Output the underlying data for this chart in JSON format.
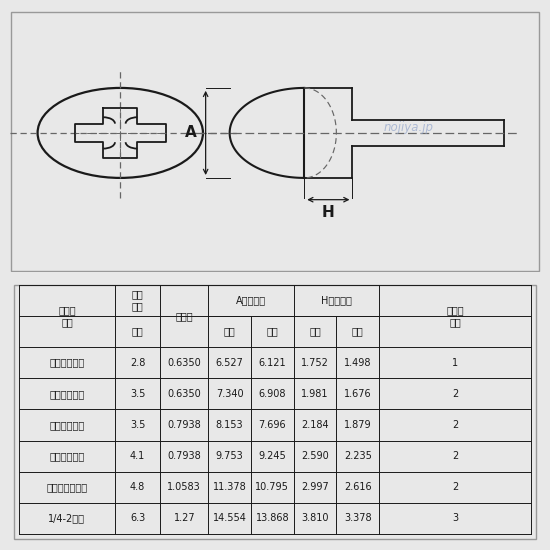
{
  "bg_color": "#e8e8e8",
  "drawing_bg": "#f8f8f8",
  "table_bg": "#f8f8f8",
  "line_color": "#1a1a1a",
  "dashed_color": "#666666",
  "watermark_color": "#99aacc",
  "watermark_text": "nojiya.jp",
  "col_starts": [
    0.02,
    0.2,
    0.285,
    0.375,
    0.455,
    0.535,
    0.615,
    0.695,
    0.98
  ],
  "table_data": [
    [
      "＃４－４０山",
      "2.8",
      "0.6350",
      "6.527",
      "6.121",
      "1.752",
      "1.498",
      "1"
    ],
    [
      "＃５－４０山",
      "3.5",
      "0.6350",
      "7.340",
      "6.908",
      "1.981",
      "1.676",
      "2"
    ],
    [
      "＃６－３２山",
      "3.5",
      "0.7938",
      "8.153",
      "7.696",
      "2.184",
      "1.879",
      "2"
    ],
    [
      "＃８－３２山",
      "4.1",
      "0.7938",
      "9.753",
      "9.245",
      "2.590",
      "2.235",
      "2"
    ],
    [
      "＃１０－２４山",
      "4.8",
      "1.0583",
      "11.378",
      "10.795",
      "2.997",
      "2.616",
      "2"
    ],
    [
      "1/4-2０山",
      "6.3",
      "1.27",
      "14.554",
      "13.868",
      "3.810",
      "3.378",
      "3"
    ]
  ],
  "h1_col0": "ねじの\n呼び",
  "h1_col1": "ねじ\n外径",
  "h1_col2": "ピッチ",
  "h1_col34": "A（頭径）",
  "h1_col56": "H（頭径）",
  "h1_col7": "十字穴\n番号",
  "h2_col1": "参考",
  "h2_col3": "最大",
  "h2_col4": "最小",
  "h2_col5": "最大",
  "h2_col6": "最小"
}
